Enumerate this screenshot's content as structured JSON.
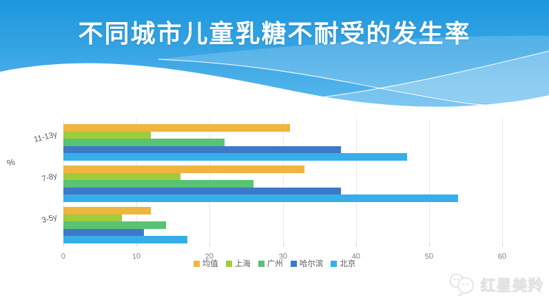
{
  "header": {
    "title": "不同城市儿童乳糖不耐受的发生率"
  },
  "chart_data": {
    "type": "bar",
    "orientation": "horizontal",
    "ylabel": "%",
    "categories": [
      "11-13y",
      "7-8y",
      "3-5y"
    ],
    "series": [
      {
        "name": "均值",
        "color": "#EFB53E",
        "values": [
          31,
          33,
          12
        ]
      },
      {
        "name": "上海",
        "color": "#A0CB3A",
        "values": [
          12,
          16,
          8
        ]
      },
      {
        "name": "广州",
        "color": "#57C373",
        "values": [
          22,
          26,
          14
        ]
      },
      {
        "name": "哈尔滨",
        "color": "#3E79C9",
        "values": [
          38,
          38,
          11
        ]
      },
      {
        "name": "北京",
        "color": "#35AEEA",
        "values": [
          47,
          54,
          17
        ]
      }
    ],
    "x_ticks": [
      0,
      10,
      20,
      30,
      40,
      50,
      60
    ],
    "xlim": [
      0,
      62.9
    ],
    "grid": true,
    "legend_position": "bottom"
  },
  "watermark": {
    "text": "红星美羚",
    "icon": "wechat-bubbles-icon"
  },
  "colors": {
    "header_top": "#1d98de",
    "header_bottom": "#5cb9ee",
    "grid": "#e8e8e8",
    "axis_text": "#7f7f7f"
  }
}
